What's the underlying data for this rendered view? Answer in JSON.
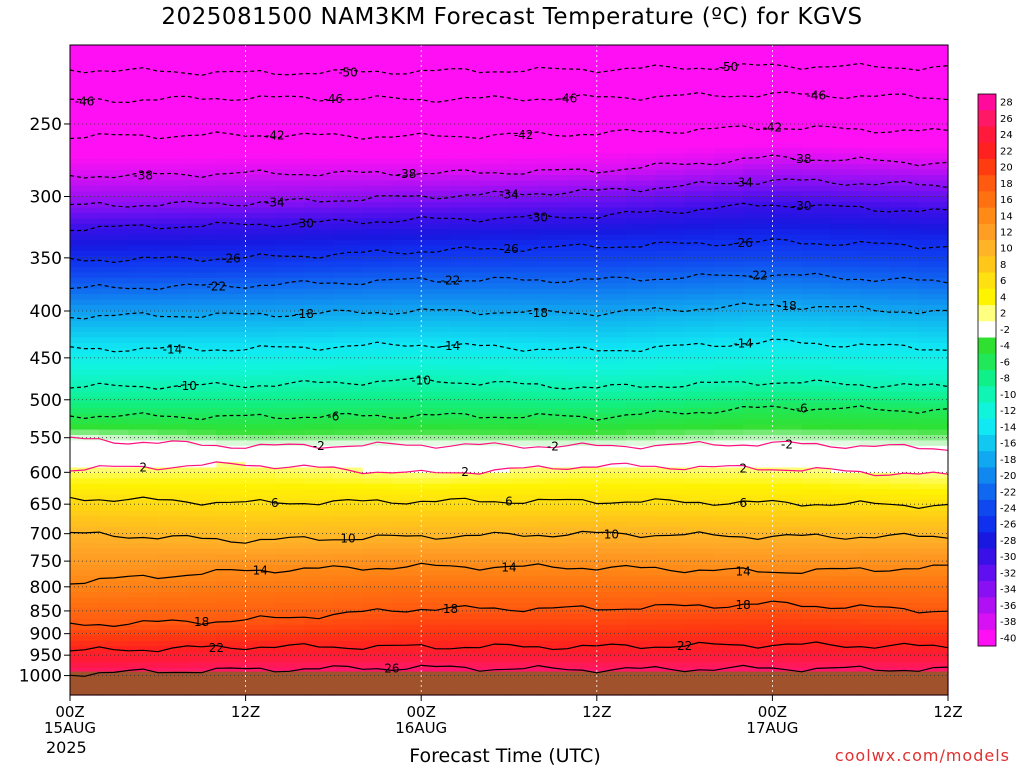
{
  "title": "2025081500 NAM3KM Forecast Temperature (ºC) for KGVS",
  "x_axis_label": "Forecast Time (UTC)",
  "year_label": "2025",
  "credit": "coolwx.com/models",
  "chart_data": {
    "type": "heatmap",
    "title": "2025081500 NAM3KM Forecast Temperature (ºC) for KGVS",
    "xlabel": "Forecast Time (UTC)",
    "ylabel": "",
    "y_scale": "log",
    "y_inverted": true,
    "ylim": [
      1050,
      205
    ],
    "xlim": [
      0,
      60
    ],
    "x_ticks": [
      {
        "value": 0,
        "label": [
          "00Z",
          "15AUG"
        ]
      },
      {
        "value": 12,
        "label": [
          "12Z"
        ]
      },
      {
        "value": 24,
        "label": [
          "00Z",
          "16AUG"
        ]
      },
      {
        "value": 36,
        "label": [
          "12Z"
        ]
      },
      {
        "value": 48,
        "label": [
          "00Z",
          "17AUG"
        ]
      },
      {
        "value": 60,
        "label": [
          "12Z"
        ]
      }
    ],
    "y_ticks": [
      250,
      300,
      350,
      400,
      450,
      500,
      550,
      600,
      650,
      700,
      750,
      800,
      850,
      900,
      950,
      1000
    ],
    "ground_level_hpa": 990,
    "colorbar": {
      "labels": [
        28,
        26,
        24,
        22,
        20,
        18,
        16,
        14,
        12,
        10,
        8,
        6,
        4,
        2,
        -2,
        -4,
        -6,
        -8,
        -10,
        -12,
        -14,
        -16,
        -18,
        -20,
        -22,
        -24,
        -26,
        -28,
        -30,
        -32,
        -34,
        -36,
        -38,
        -40
      ],
      "colors": [
        "#ff0a9a",
        "#ff1866",
        "#ff1a3c",
        "#ff2020",
        "#ff3c10",
        "#ff5a10",
        "#ff7010",
        "#ff8a18",
        "#ff9e24",
        "#ffb428",
        "#ffc818",
        "#ffe010",
        "#fff400",
        "#ffff80",
        "#ffffff",
        "#30e030",
        "#20e858",
        "#10f088",
        "#10f4b4",
        "#10f4dc",
        "#10e8f4",
        "#10c8f0",
        "#10a8f0",
        "#1088f0",
        "#1068f0",
        "#1048f0",
        "#1030f0",
        "#1818e0",
        "#3a10e8",
        "#6010f0",
        "#8a10f4",
        "#b010f4",
        "#d810f4",
        "#ff10f4"
      ]
    },
    "contours": [
      {
        "value": -50,
        "pressure": [
          218,
          220,
          219,
          218,
          216,
          217
        ],
        "label_times": [
          19,
          45
        ]
      },
      {
        "value": -46,
        "pressure": [
          236,
          234,
          235,
          234,
          232,
          234
        ],
        "label_times": [
          1,
          18,
          34,
          51
        ]
      },
      {
        "value": -42,
        "pressure": [
          258,
          257,
          258,
          256,
          252,
          255
        ],
        "label_times": [
          14,
          31,
          48
        ]
      },
      {
        "value": -38,
        "pressure": [
          285,
          283,
          283,
          281,
          272,
          276
        ],
        "label_times": [
          5,
          23,
          50
        ]
      },
      {
        "value": -34,
        "pressure": [
          307,
          305,
          300,
          296,
          288,
          292
        ],
        "label_times": [
          14,
          30,
          46
        ]
      },
      {
        "value": -30,
        "pressure": [
          325,
          322,
          318,
          315,
          306,
          312
        ],
        "label_times": [
          16,
          32,
          50
        ]
      },
      {
        "value": -26,
        "pressure": [
          352,
          350,
          344,
          340,
          336,
          340
        ],
        "label_times": [
          11,
          30,
          46
        ]
      },
      {
        "value": -22,
        "pressure": [
          378,
          375,
          370,
          370,
          365,
          372
        ],
        "label_times": [
          10,
          26,
          47
        ]
      },
      {
        "value": -18,
        "pressure": [
          405,
          404,
          400,
          402,
          394,
          402
        ],
        "label_times": [
          16,
          32,
          49
        ]
      },
      {
        "value": -14,
        "pressure": [
          440,
          440,
          435,
          442,
          432,
          440
        ],
        "label_times": [
          7,
          26,
          46
        ]
      },
      {
        "value": -10,
        "pressure": [
          484,
          482,
          476,
          485,
          478,
          484
        ],
        "label_times": [
          8,
          24
        ]
      },
      {
        "value": -6,
        "pressure": [
          520,
          522,
          520,
          522,
          510,
          514
        ],
        "label_times": [
          18,
          50
        ]
      },
      {
        "value": -2,
        "pressure": [
          552,
          562,
          560,
          562,
          558,
          565
        ],
        "label_times": [
          17,
          33,
          49
        ]
      },
      {
        "value": 2,
        "pressure": [
          595,
          588,
          602,
          590,
          594,
          605
        ],
        "label_times": [
          5,
          27,
          46
        ]
      },
      {
        "value": 6,
        "pressure": [
          640,
          648,
          645,
          645,
          648,
          652
        ],
        "label_times": [
          14,
          30,
          46
        ]
      },
      {
        "value": 10,
        "pressure": [
          700,
          712,
          705,
          700,
          705,
          705
        ],
        "label_times": [
          19,
          37
        ]
      },
      {
        "value": 14,
        "pressure": [
          790,
          768,
          760,
          762,
          770,
          762
        ],
        "label_times": [
          13,
          30,
          46
        ]
      },
      {
        "value": 18,
        "pressure": [
          880,
          870,
          845,
          845,
          835,
          850
        ],
        "label_times": [
          9,
          26,
          46
        ]
      },
      {
        "value": 22,
        "pressure": [
          940,
          930,
          930,
          930,
          925,
          930
        ],
        "label_times": [
          10,
          42
        ]
      },
      {
        "value": 26,
        "pressure": [
          995,
          985,
          980,
          985,
          982,
          985
        ],
        "label_times": [
          22
        ]
      }
    ]
  }
}
